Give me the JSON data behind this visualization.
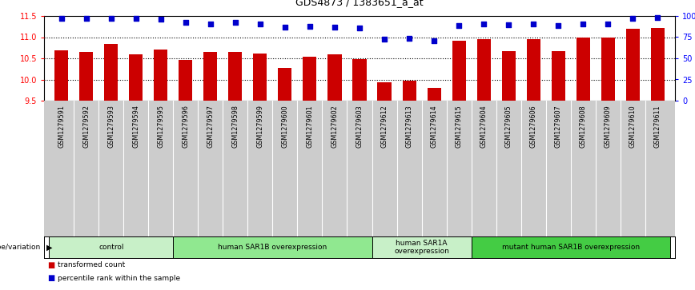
{
  "title": "GDS4873 / 1383651_a_at",
  "samples": [
    "GSM1279591",
    "GSM1279592",
    "GSM1279593",
    "GSM1279594",
    "GSM1279595",
    "GSM1279596",
    "GSM1279597",
    "GSM1279598",
    "GSM1279599",
    "GSM1279600",
    "GSM1279601",
    "GSM1279602",
    "GSM1279603",
    "GSM1279612",
    "GSM1279613",
    "GSM1279614",
    "GSM1279615",
    "GSM1279604",
    "GSM1279605",
    "GSM1279606",
    "GSM1279607",
    "GSM1279608",
    "GSM1279609",
    "GSM1279610",
    "GSM1279611"
  ],
  "red_values": [
    10.69,
    10.65,
    10.84,
    10.6,
    10.7,
    10.46,
    10.65,
    10.66,
    10.62,
    10.27,
    10.53,
    10.6,
    10.48,
    9.94,
    9.97,
    9.8,
    10.91,
    10.95,
    10.67,
    10.95,
    10.67,
    11.0,
    11.0,
    11.2,
    11.22
  ],
  "blue_values": [
    97,
    97,
    97,
    97,
    96,
    92,
    91,
    92,
    91,
    87,
    88,
    87,
    86,
    73,
    74,
    71,
    89,
    91,
    90,
    91,
    89,
    91,
    91,
    97,
    98
  ],
  "ylim_left": [
    9.5,
    11.5
  ],
  "ylim_right": [
    0,
    100
  ],
  "yticks_left": [
    9.5,
    10.0,
    10.5,
    11.0,
    11.5
  ],
  "yticks_right": [
    0,
    25,
    50,
    75,
    100
  ],
  "ytick_labels_right": [
    "0",
    "25",
    "50",
    "75",
    "100%"
  ],
  "groups": [
    {
      "label": "control",
      "start": 0,
      "end": 5,
      "color": "#c8f0c8"
    },
    {
      "label": "human SAR1B overexpression",
      "start": 5,
      "end": 13,
      "color": "#90e890"
    },
    {
      "label": "human SAR1A\noverexpression",
      "start": 13,
      "end": 17,
      "color": "#c8f0c8"
    },
    {
      "label": "mutant human SAR1B overexpression",
      "start": 17,
      "end": 25,
      "color": "#44cc44"
    }
  ],
  "genotype_label": "genotype/variation",
  "legend_red": "transformed count",
  "legend_blue": "percentile rank within the sample",
  "bar_color": "#cc0000",
  "dot_color": "#0000cc",
  "tick_label_bg": "#cccccc",
  "group_lighter": "#c8f0c8",
  "group_medium": "#90e890",
  "group_darker": "#44cc44"
}
